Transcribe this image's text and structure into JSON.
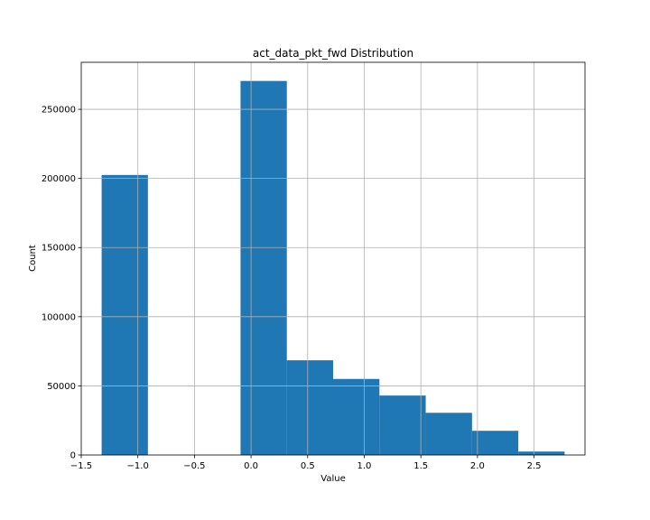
{
  "chart_data": {
    "type": "bar",
    "subtype": "histogram",
    "title": "act_data_pkt_fwd Distribution",
    "xlabel": "Value",
    "ylabel": "Count",
    "bin_edges": [
      -1.32,
      -0.911,
      -0.502,
      -0.093,
      0.316,
      0.725,
      1.134,
      1.543,
      1.952,
      2.361,
      2.77
    ],
    "values": [
      202500,
      0,
      0,
      270500,
      68500,
      55000,
      43000,
      30500,
      17500,
      2500
    ],
    "xlim": [
      -1.5,
      2.95
    ],
    "ylim": [
      0,
      284000
    ],
    "xticks": [
      -1.5,
      -1.0,
      -0.5,
      0.0,
      0.5,
      1.0,
      1.5,
      2.0,
      2.5
    ],
    "xtick_labels": [
      "−1.5",
      "−1.0",
      "−0.5",
      "0.0",
      "0.5",
      "1.0",
      "1.5",
      "2.0",
      "2.5"
    ],
    "yticks": [
      0,
      50000,
      100000,
      150000,
      200000,
      250000
    ],
    "ytick_labels": [
      "0",
      "50000",
      "100000",
      "150000",
      "200000",
      "250000"
    ],
    "grid": true,
    "bar_color": "#1f77b4",
    "grid_color": "#b0b0b0"
  }
}
